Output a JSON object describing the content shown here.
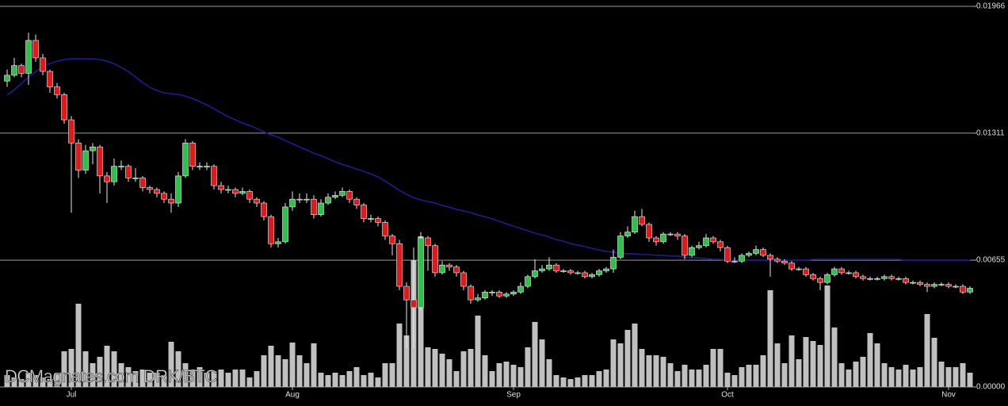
{
  "chart_data": {
    "type": "candlestick",
    "title": "DCMagnates.com DRK/BTC",
    "categories": [
      null,
      null,
      null,
      null,
      null,
      null,
      null,
      null,
      null,
      "Jul",
      null,
      null,
      null,
      null,
      null,
      null,
      null,
      null,
      null,
      null,
      null,
      null,
      null,
      null,
      null,
      null,
      null,
      null,
      null,
      null,
      null,
      null,
      null,
      null,
      null,
      null,
      null,
      null,
      null,
      null,
      "Aug",
      null,
      null,
      null,
      null,
      null,
      null,
      null,
      null,
      null,
      null,
      null,
      null,
      null,
      null,
      null,
      null,
      null,
      null,
      null,
      null,
      null,
      null,
      null,
      null,
      null,
      null,
      null,
      null,
      null,
      null,
      "Sep",
      null,
      null,
      null,
      null,
      null,
      null,
      null,
      null,
      null,
      null,
      null,
      null,
      null,
      null,
      null,
      null,
      null,
      null,
      null,
      null,
      null,
      null,
      null,
      null,
      null,
      null,
      null,
      null,
      null,
      "Oct",
      null,
      null,
      null,
      null,
      null,
      null,
      null,
      null,
      null,
      null,
      null,
      null,
      null,
      null,
      null,
      null,
      null,
      null,
      null,
      null,
      null,
      null,
      null,
      null,
      null,
      null,
      null,
      null,
      null,
      null,
      "Nov",
      null,
      null,
      null
    ],
    "open": [
      0.0158,
      0.0161,
      0.0166,
      0.0162,
      0.0179,
      0.017,
      0.0163,
      0.0155,
      0.0151,
      0.0138,
      0.0126,
      0.0112,
      0.0122,
      0.0124,
      0.0109,
      0.0106,
      0.0114,
      0.0114,
      0.0108,
      0.0108,
      0.0103,
      0.0102,
      0.01,
      0.0097,
      0.0095,
      0.0109,
      0.0126,
      0.0114,
      0.0114,
      0.0114,
      0.0104,
      0.0102,
      0.0102,
      0.01,
      0.0101,
      0.0097,
      0.0095,
      0.0088,
      0.0074,
      0.0075,
      0.0093,
      0.0097,
      0.0097,
      0.0097,
      0.0089,
      0.0095,
      0.0098,
      0.0099,
      0.0101,
      0.0097,
      0.0094,
      0.0087,
      0.0087,
      0.0085,
      0.0078,
      0.0074,
      0.0052,
      0.0045,
      0.0041,
      0.0077,
      0.0073,
      0.0059,
      0.0063,
      0.0062,
      0.0059,
      0.0052,
      0.0045,
      0.0046,
      0.0049,
      0.0049,
      0.0047,
      0.0048,
      0.0049,
      0.0052,
      0.0057,
      0.006,
      0.0061,
      0.0063,
      0.006,
      0.006,
      0.0059,
      0.0059,
      0.0057,
      0.0058,
      0.006,
      0.0061,
      0.0067,
      0.0078,
      0.008,
      0.0088,
      0.0084,
      0.0077,
      0.0075,
      0.0079,
      0.0079,
      0.0078,
      0.0068,
      0.0072,
      0.0073,
      0.0077,
      0.0075,
      0.0072,
      0.0065,
      0.0065,
      0.0068,
      0.0069,
      0.0071,
      0.0068,
      0.0066,
      0.0065,
      0.0064,
      0.0061,
      0.0061,
      0.0058,
      0.0056,
      0.0054,
      0.0058,
      0.0061,
      0.0059,
      0.0059,
      0.0057,
      0.0056,
      0.0056,
      0.0056,
      0.0057,
      0.0056,
      0.0056,
      0.0054,
      0.0054,
      0.0053,
      0.0052,
      0.0053,
      0.0053,
      0.0052,
      0.0052,
      0.0049
    ],
    "high": [
      0.0164,
      0.017,
      0.0167,
      0.0183,
      0.0182,
      0.0172,
      0.0164,
      0.0157,
      0.0152,
      0.014,
      0.0128,
      0.0125,
      0.0126,
      0.0125,
      0.0111,
      0.0118,
      0.0117,
      0.0115,
      0.0113,
      0.0109,
      0.0104,
      0.0103,
      0.0101,
      0.01,
      0.0111,
      0.0128,
      0.0127,
      0.0116,
      0.0116,
      0.0115,
      0.0106,
      0.0104,
      0.0103,
      0.0103,
      0.0102,
      0.0098,
      0.0096,
      0.0089,
      0.0077,
      0.0095,
      0.0101,
      0.01,
      0.01,
      0.0099,
      0.0097,
      0.01,
      0.0101,
      0.0103,
      0.0102,
      0.0098,
      0.0095,
      0.0089,
      0.0088,
      0.0086,
      0.0079,
      0.0076,
      0.0054,
      0.0072,
      0.008,
      0.0078,
      0.0074,
      0.0065,
      0.0064,
      0.0063,
      0.006,
      0.0053,
      0.0048,
      0.005,
      0.005,
      0.005,
      0.0049,
      0.005,
      0.0054,
      0.0058,
      0.0066,
      0.0063,
      0.0067,
      0.0064,
      0.0061,
      0.0061,
      0.006,
      0.006,
      0.0059,
      0.0061,
      0.0062,
      0.0071,
      0.008,
      0.0083,
      0.0091,
      0.0092,
      0.0085,
      0.0078,
      0.008,
      0.008,
      0.008,
      0.0079,
      0.0073,
      0.0075,
      0.0079,
      0.0078,
      0.0076,
      0.0073,
      0.0067,
      0.0069,
      0.007,
      0.0073,
      0.0072,
      0.0069,
      0.0067,
      0.0066,
      0.0065,
      0.0062,
      0.0062,
      0.0059,
      0.0057,
      0.0059,
      0.0062,
      0.0062,
      0.006,
      0.006,
      0.0058,
      0.0057,
      0.0057,
      0.0058,
      0.0058,
      0.0057,
      0.0057,
      0.0055,
      0.0055,
      0.0054,
      0.0054,
      0.0054,
      0.0054,
      0.0053,
      0.0053,
      0.0052
    ],
    "low": [
      0.0155,
      0.016,
      0.016,
      0.0156,
      0.0168,
      0.0161,
      0.0152,
      0.0149,
      0.0136,
      0.009,
      0.0108,
      0.011,
      0.0115,
      0.01,
      0.0095,
      0.0104,
      0.0112,
      0.0106,
      0.0106,
      0.0101,
      0.01,
      0.0098,
      0.0095,
      0.009,
      0.0093,
      0.0108,
      0.0112,
      0.0112,
      0.0112,
      0.0102,
      0.01,
      0.01,
      0.0098,
      0.0099,
      0.0095,
      0.0093,
      0.0086,
      0.0072,
      0.0072,
      0.0074,
      0.0091,
      0.0095,
      0.0095,
      0.0087,
      0.0088,
      0.0094,
      0.0097,
      0.0098,
      0.0095,
      0.0092,
      0.0085,
      0.0085,
      0.0083,
      0.0076,
      0.0068,
      0.005,
      0.002,
      0.002,
      0.004,
      0.006,
      0.0057,
      0.0058,
      0.006,
      0.0057,
      0.005,
      0.0043,
      0.0044,
      0.0045,
      0.0047,
      0.0046,
      0.0046,
      0.0047,
      0.0048,
      0.0051,
      0.0056,
      0.0059,
      0.006,
      0.0059,
      0.0059,
      0.0058,
      0.0058,
      0.0056,
      0.0056,
      0.0057,
      0.0059,
      0.0059,
      0.0066,
      0.0077,
      0.0079,
      0.0083,
      0.0075,
      0.0073,
      0.0074,
      0.0078,
      0.0076,
      0.0066,
      0.0067,
      0.0071,
      0.0072,
      0.0074,
      0.007,
      0.0064,
      0.0064,
      0.0064,
      0.0067,
      0.0068,
      0.0067,
      0.0057,
      0.0064,
      0.0063,
      0.006,
      0.006,
      0.0057,
      0.0055,
      0.005,
      0.0053,
      0.0057,
      0.0058,
      0.0058,
      0.0056,
      0.0055,
      0.0055,
      0.0055,
      0.0055,
      0.0055,
      0.0055,
      0.0053,
      0.0053,
      0.0052,
      0.0049,
      0.0051,
      0.0052,
      0.0051,
      0.0051,
      0.0048,
      0.0048
    ],
    "close": [
      0.0161,
      0.0166,
      0.0162,
      0.0179,
      0.017,
      0.0163,
      0.0155,
      0.0151,
      0.0138,
      0.0126,
      0.0112,
      0.0122,
      0.0124,
      0.0109,
      0.0106,
      0.0114,
      0.0114,
      0.0108,
      0.0108,
      0.0103,
      0.0102,
      0.01,
      0.0097,
      0.0095,
      0.0109,
      0.0126,
      0.0114,
      0.0114,
      0.0114,
      0.0104,
      0.0102,
      0.0102,
      0.01,
      0.0101,
      0.0097,
      0.0095,
      0.0088,
      0.0074,
      0.0075,
      0.0093,
      0.0097,
      0.0097,
      0.0097,
      0.0089,
      0.0095,
      0.0098,
      0.0099,
      0.0101,
      0.0097,
      0.0094,
      0.0087,
      0.0087,
      0.0085,
      0.0078,
      0.0074,
      0.0052,
      0.0045,
      0.0041,
      0.0077,
      0.0073,
      0.0059,
      0.0063,
      0.0062,
      0.0059,
      0.0052,
      0.0045,
      0.0046,
      0.0049,
      0.0049,
      0.0047,
      0.0048,
      0.0049,
      0.0052,
      0.0057,
      0.006,
      0.0061,
      0.0063,
      0.006,
      0.006,
      0.0059,
      0.0059,
      0.0057,
      0.0058,
      0.006,
      0.0061,
      0.0067,
      0.0078,
      0.008,
      0.0088,
      0.0084,
      0.0077,
      0.0075,
      0.0079,
      0.0079,
      0.0078,
      0.0068,
      0.0072,
      0.0073,
      0.0077,
      0.0075,
      0.0072,
      0.0065,
      0.0065,
      0.0068,
      0.0069,
      0.0071,
      0.0068,
      0.0066,
      0.0065,
      0.0064,
      0.0061,
      0.0061,
      0.0058,
      0.0056,
      0.0054,
      0.0058,
      0.0061,
      0.0059,
      0.0059,
      0.0057,
      0.0056,
      0.0056,
      0.0056,
      0.0057,
      0.0056,
      0.0056,
      0.0054,
      0.0054,
      0.0053,
      0.0052,
      0.0053,
      0.0053,
      0.0052,
      0.0052,
      0.0049,
      0.0051
    ],
    "volume": [
      15,
      12,
      10,
      18,
      15,
      12,
      10,
      18,
      45,
      48,
      105,
      45,
      30,
      38,
      52,
      45,
      30,
      25,
      20,
      22,
      18,
      18,
      15,
      57,
      45,
      30,
      22,
      25,
      18,
      20,
      22,
      18,
      22,
      22,
      12,
      20,
      40,
      52,
      40,
      35,
      56,
      40,
      30,
      55,
      18,
      15,
      18,
      15,
      20,
      25,
      15,
      18,
      12,
      30,
      30,
      80,
      65,
      160,
      190,
      50,
      48,
      42,
      35,
      20,
      45,
      48,
      90,
      40,
      20,
      30,
      32,
      28,
      25,
      50,
      82,
      60,
      35,
      15,
      12,
      10,
      12,
      15,
      15,
      20,
      22,
      60,
      55,
      72,
      80,
      48,
      40,
      40,
      38,
      30,
      20,
      28,
      22,
      22,
      28,
      48,
      48,
      18,
      15,
      25,
      28,
      28,
      40,
      122,
      55,
      30,
      65,
      35,
      63,
      58,
      53,
      128,
      75,
      30,
      22,
      32,
      38,
      68,
      55,
      30,
      25,
      22,
      28,
      22,
      25,
      92,
      62,
      32,
      25,
      25,
      30,
      18
    ],
    "volume_lim": [
      0,
      480
    ],
    "volume_color": "#c0c0c0",
    "moving_average": {
      "color": "#1c1c96",
      "values": [
        0.01507,
        0.01535,
        0.01568,
        0.01601,
        0.01629,
        0.01654,
        0.0167,
        0.01683,
        0.01691,
        0.01695,
        0.01695,
        0.01695,
        0.01695,
        0.01691,
        0.01683,
        0.0167,
        0.0165,
        0.01629,
        0.01601,
        0.01572,
        0.01548,
        0.01531,
        0.01519,
        0.01515,
        0.01511,
        0.01502,
        0.0149,
        0.01474,
        0.01457,
        0.01437,
        0.01417,
        0.01396,
        0.0138,
        0.01363,
        0.01351,
        0.01335,
        0.01318,
        0.01302,
        0.0129,
        0.01273,
        0.01257,
        0.0124,
        0.01224,
        0.01208,
        0.01195,
        0.01179,
        0.01163,
        0.0115,
        0.01138,
        0.01126,
        0.01114,
        0.01101,
        0.01085,
        0.01064,
        0.0104,
        0.01015,
        0.00995,
        0.00978,
        0.00966,
        0.00958,
        0.0095,
        0.00938,
        0.00929,
        0.00917,
        0.00909,
        0.00901,
        0.00888,
        0.0088,
        0.00868,
        0.00856,
        0.00843,
        0.00831,
        0.00819,
        0.00807,
        0.00794,
        0.00786,
        0.00774,
        0.00761,
        0.00753,
        0.00741,
        0.00733,
        0.00725,
        0.00716,
        0.00708,
        0.007,
        0.00696,
        0.00692,
        0.00688,
        0.00688,
        0.00684,
        0.00684,
        0.0068,
        0.0068,
        0.00676,
        0.00676,
        0.00671,
        0.00667,
        0.00667,
        0.00663,
        0.00659,
        0.00659,
        0.00655,
        0.00655,
        0.00655,
        0.00655,
        0.00655,
        0.00655,
        0.00655,
        0.00655,
        0.00655,
        0.00655,
        0.00655,
        0.00655,
        0.00659,
        0.00659,
        0.00659,
        0.00659,
        0.00659,
        0.00659,
        0.00659,
        0.00659,
        0.00659,
        0.00659,
        0.00659,
        0.00659,
        0.00659,
        0.00655,
        0.00655,
        0.00655,
        0.00655,
        0.00655,
        0.00655,
        0.00655,
        0.00655,
        0.00655,
        0.00655
      ]
    },
    "up_color": "#2cc24a",
    "down_color": "#e01a1a",
    "wick_color": "#e8e8e8",
    "ylim": [
      0,
      0.01966
    ],
    "yticks": [
      {
        "value": 0,
        "label": "0.00000"
      },
      0.00655,
      0.01311,
      0.01966
    ],
    "grid": true
  }
}
